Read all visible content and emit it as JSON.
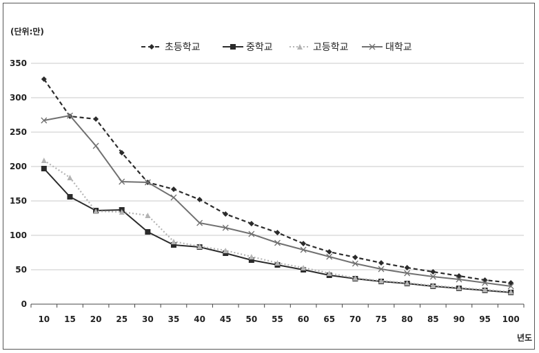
{
  "chart_data": {
    "type": "line",
    "y_unit_label": "(단위:만)",
    "x_unit_label": "년도",
    "xlabel": "",
    "ylabel": "",
    "x": [
      10,
      15,
      20,
      25,
      30,
      35,
      40,
      45,
      50,
      55,
      60,
      65,
      70,
      75,
      80,
      85,
      90,
      95,
      100
    ],
    "ylim": [
      0,
      350
    ],
    "yticks": [
      0,
      50,
      100,
      150,
      200,
      250,
      300,
      350
    ],
    "grid": true,
    "legend_position": "top",
    "series": [
      {
        "name": "초등학교",
        "color": "#2b2b2b",
        "line_style": "dashed",
        "marker": "diamond",
        "values": [
          327,
          273,
          269,
          220,
          177,
          167,
          152,
          131,
          117,
          104,
          88,
          76,
          68,
          60,
          53,
          47,
          41,
          35,
          31
        ]
      },
      {
        "name": "중학교",
        "color": "#2b2b2b",
        "line_style": "solid",
        "marker": "square",
        "values": [
          197,
          156,
          136,
          137,
          105,
          86,
          83,
          74,
          64,
          57,
          50,
          42,
          37,
          33,
          30,
          26,
          23,
          20,
          17
        ]
      },
      {
        "name": "고등학교",
        "color": "#b4b4b4",
        "line_style": "dotted",
        "marker": "triangle",
        "values": [
          209,
          184,
          135,
          134,
          129,
          91,
          84,
          78,
          69,
          60,
          53,
          45,
          38,
          34,
          31,
          27,
          24,
          21,
          18
        ]
      },
      {
        "name": "대학교",
        "color": "#707070",
        "line_style": "solid",
        "marker": "x",
        "values": [
          267,
          274,
          230,
          178,
          177,
          155,
          118,
          111,
          102,
          89,
          79,
          69,
          59,
          51,
          45,
          40,
          36,
          31,
          26
        ]
      }
    ]
  }
}
